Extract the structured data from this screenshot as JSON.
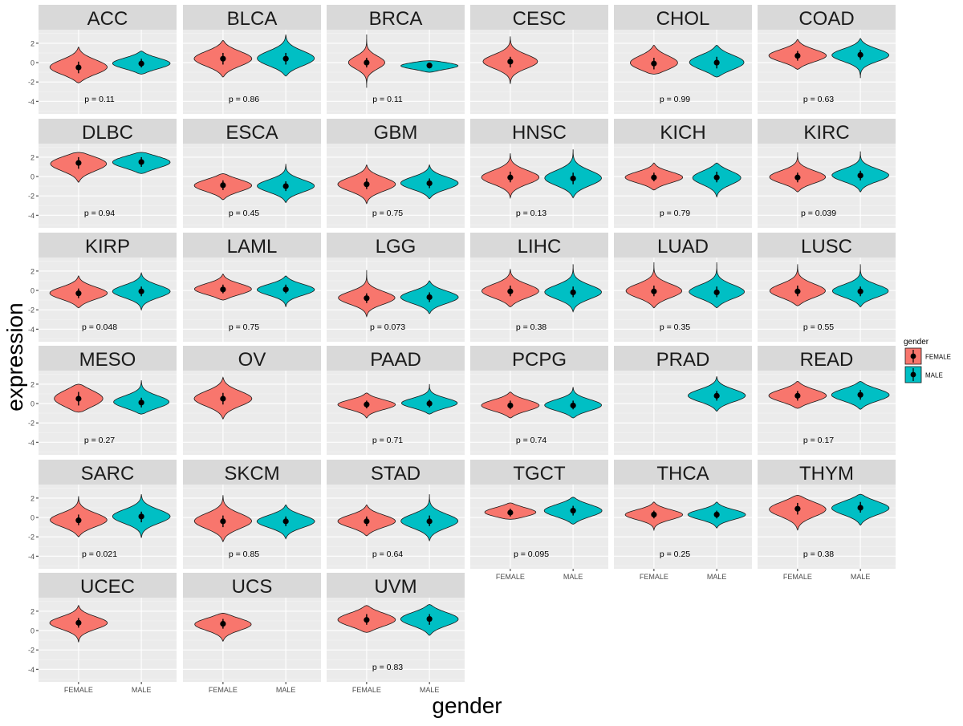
{
  "chart_data": {
    "type": "violin",
    "xlabel": "gender",
    "ylabel": "expression",
    "categories": [
      "FEMALE",
      "MALE"
    ],
    "y_ticks": [
      2,
      0,
      -2,
      -4
    ],
    "ylim": [
      -5.3,
      3.4
    ],
    "legend": {
      "title": "gender",
      "position": "right",
      "entries": [
        {
          "label": "FEMALE",
          "color": "#F8766D"
        },
        {
          "label": "MALE",
          "color": "#00BFC4"
        }
      ]
    },
    "panels": [
      {
        "name": "ACC",
        "p": "p = 0.11",
        "groups": [
          {
            "median": -0.5,
            "q1": -1.1,
            "q3": 0.1,
            "min": -2.1,
            "max": 1.6,
            "width": 0.95
          },
          {
            "median": -0.1,
            "q1": -0.5,
            "q3": 0.4,
            "min": -1.2,
            "max": 1.2,
            "width": 0.95
          }
        ]
      },
      {
        "name": "BLCA",
        "p": "p = 0.86",
        "groups": [
          {
            "median": 0.4,
            "q1": -0.2,
            "q3": 1.0,
            "min": -1.5,
            "max": 2.3,
            "width": 0.95
          },
          {
            "median": 0.4,
            "q1": -0.2,
            "q3": 1.0,
            "min": -1.4,
            "max": 2.9,
            "width": 0.95
          }
        ]
      },
      {
        "name": "BRCA",
        "p": "p = 0.11",
        "groups": [
          {
            "median": 0.0,
            "q1": -0.5,
            "q3": 0.5,
            "min": -2.6,
            "max": 2.9,
            "width": 0.6
          },
          {
            "median": -0.3,
            "q1": -0.6,
            "q3": 0.0,
            "min": -1.0,
            "max": 0.2,
            "width": 0.95
          }
        ]
      },
      {
        "name": "CESC",
        "p": "",
        "groups": [
          {
            "median": 0.1,
            "q1": -0.5,
            "q3": 0.6,
            "min": -2.2,
            "max": 2.7,
            "width": 0.9
          },
          null
        ]
      },
      {
        "name": "CHOL",
        "p": "p = 0.99",
        "groups": [
          {
            "median": -0.1,
            "q1": -0.7,
            "q3": 0.5,
            "min": -1.2,
            "max": 1.8,
            "width": 0.8
          },
          {
            "median": 0.0,
            "q1": -0.6,
            "q3": 0.6,
            "min": -1.5,
            "max": 1.8,
            "width": 0.9
          }
        ]
      },
      {
        "name": "COAD",
        "p": "p = 0.63",
        "groups": [
          {
            "median": 0.7,
            "q1": 0.2,
            "q3": 1.2,
            "min": -0.7,
            "max": 2.4,
            "width": 0.95
          },
          {
            "median": 0.8,
            "q1": 0.3,
            "q3": 1.3,
            "min": -1.6,
            "max": 2.5,
            "width": 0.95
          }
        ]
      },
      {
        "name": "DLBC",
        "p": "p = 0.94",
        "groups": [
          {
            "median": 1.4,
            "q1": 0.8,
            "q3": 2.0,
            "min": -0.6,
            "max": 2.5,
            "width": 0.95
          },
          {
            "median": 1.5,
            "q1": 1.0,
            "q3": 2.0,
            "min": 0.3,
            "max": 2.5,
            "width": 0.95
          }
        ]
      },
      {
        "name": "ESCA",
        "p": "p = 0.45",
        "groups": [
          {
            "median": -0.9,
            "q1": -1.4,
            "q3": -0.4,
            "min": -2.4,
            "max": 0.3,
            "width": 0.95
          },
          {
            "median": -1.0,
            "q1": -1.5,
            "q3": -0.5,
            "min": -2.7,
            "max": 1.3,
            "width": 0.95
          }
        ]
      },
      {
        "name": "GBM",
        "p": "p = 0.75",
        "groups": [
          {
            "median": -0.8,
            "q1": -1.3,
            "q3": -0.2,
            "min": -2.8,
            "max": 1.2,
            "width": 0.95
          },
          {
            "median": -0.7,
            "q1": -1.2,
            "q3": -0.2,
            "min": -2.3,
            "max": 1.2,
            "width": 0.95
          }
        ]
      },
      {
        "name": "HNSC",
        "p": "p = 0.13",
        "groups": [
          {
            "median": -0.1,
            "q1": -0.6,
            "q3": 0.5,
            "min": -2.2,
            "max": 2.4,
            "width": 0.95
          },
          {
            "median": -0.2,
            "q1": -0.8,
            "q3": 0.4,
            "min": -2.2,
            "max": 2.8,
            "width": 0.95
          }
        ]
      },
      {
        "name": "KICH",
        "p": "p = 0.79",
        "groups": [
          {
            "median": -0.1,
            "q1": -0.5,
            "q3": 0.4,
            "min": -1.4,
            "max": 1.4,
            "width": 0.95
          },
          {
            "median": -0.1,
            "q1": -0.6,
            "q3": 0.5,
            "min": -2.1,
            "max": 1.4,
            "width": 0.8
          }
        ]
      },
      {
        "name": "KIRC",
        "p": "p = 0.039",
        "groups": [
          {
            "median": -0.1,
            "q1": -0.6,
            "q3": 0.4,
            "min": -1.6,
            "max": 2.5,
            "width": 0.95
          },
          {
            "median": 0.1,
            "q1": -0.4,
            "q3": 0.6,
            "min": -1.6,
            "max": 2.6,
            "width": 0.95
          }
        ]
      },
      {
        "name": "KIRP",
        "p": "p = 0.048",
        "groups": [
          {
            "median": -0.3,
            "q1": -0.8,
            "q3": 0.2,
            "min": -1.8,
            "max": 1.5,
            "width": 0.95
          },
          {
            "median": -0.1,
            "q1": -0.6,
            "q3": 0.4,
            "min": -2.0,
            "max": 1.8,
            "width": 0.95
          }
        ]
      },
      {
        "name": "LAML",
        "p": "p = 0.75",
        "groups": [
          {
            "median": 0.1,
            "q1": -0.3,
            "q3": 0.6,
            "min": -1.0,
            "max": 1.7,
            "width": 0.95
          },
          {
            "median": 0.1,
            "q1": -0.3,
            "q3": 0.6,
            "min": -1.7,
            "max": 1.5,
            "width": 0.95
          }
        ]
      },
      {
        "name": "LGG",
        "p": "p = 0.073",
        "groups": [
          {
            "median": -0.8,
            "q1": -1.3,
            "q3": -0.3,
            "min": -2.7,
            "max": 2.1,
            "width": 0.95
          },
          {
            "median": -0.7,
            "q1": -1.2,
            "q3": -0.2,
            "min": -2.4,
            "max": 1.0,
            "width": 0.95
          }
        ]
      },
      {
        "name": "LIHC",
        "p": "p = 0.38",
        "groups": [
          {
            "median": -0.1,
            "q1": -0.6,
            "q3": 0.5,
            "min": -1.7,
            "max": 2.2,
            "width": 0.95
          },
          {
            "median": -0.2,
            "q1": -0.7,
            "q3": 0.4,
            "min": -2.2,
            "max": 2.7,
            "width": 0.95
          }
        ]
      },
      {
        "name": "LUAD",
        "p": "p = 0.35",
        "groups": [
          {
            "median": -0.1,
            "q1": -0.6,
            "q3": 0.5,
            "min": -1.8,
            "max": 2.9,
            "width": 0.95
          },
          {
            "median": -0.2,
            "q1": -0.7,
            "q3": 0.4,
            "min": -1.8,
            "max": 2.9,
            "width": 0.95
          }
        ]
      },
      {
        "name": "LUSC",
        "p": "p = 0.55",
        "groups": [
          {
            "median": -0.1,
            "q1": -0.6,
            "q3": 0.5,
            "min": -1.6,
            "max": 2.7,
            "width": 0.95
          },
          {
            "median": -0.1,
            "q1": -0.6,
            "q3": 0.4,
            "min": -1.7,
            "max": 2.7,
            "width": 0.95
          }
        ]
      },
      {
        "name": "MESO",
        "p": "p = 0.27",
        "groups": [
          {
            "median": 0.5,
            "q1": -0.2,
            "q3": 1.2,
            "min": -0.9,
            "max": 2.0,
            "width": 0.8
          },
          {
            "median": 0.1,
            "q1": -0.4,
            "q3": 0.6,
            "min": -1.1,
            "max": 2.4,
            "width": 0.95
          }
        ]
      },
      {
        "name": "OV",
        "p": "",
        "groups": [
          {
            "median": 0.5,
            "q1": -0.1,
            "q3": 1.1,
            "min": -1.6,
            "max": 2.7,
            "width": 0.95
          },
          null
        ]
      },
      {
        "name": "PAAD",
        "p": "p = 0.71",
        "groups": [
          {
            "median": -0.1,
            "q1": -0.5,
            "q3": 0.3,
            "min": -1.5,
            "max": 1.1,
            "width": 0.95
          },
          {
            "median": 0.0,
            "q1": -0.4,
            "q3": 0.4,
            "min": -1.1,
            "max": 2.0,
            "width": 0.95
          }
        ]
      },
      {
        "name": "PCPG",
        "p": "p = 0.74",
        "groups": [
          {
            "median": -0.2,
            "q1": -0.6,
            "q3": 0.3,
            "min": -1.5,
            "max": 1.2,
            "width": 0.95
          },
          {
            "median": -0.2,
            "q1": -0.6,
            "q3": 0.3,
            "min": -1.5,
            "max": 1.7,
            "width": 0.95
          }
        ]
      },
      {
        "name": "PRAD",
        "p": "",
        "groups": [
          null,
          {
            "median": 0.8,
            "q1": 0.3,
            "q3": 1.3,
            "min": -0.8,
            "max": 2.8,
            "width": 0.95
          }
        ]
      },
      {
        "name": "READ",
        "p": "p = 0.17",
        "groups": [
          {
            "median": 0.8,
            "q1": 0.3,
            "q3": 1.3,
            "min": -0.5,
            "max": 2.3,
            "width": 0.95
          },
          {
            "median": 0.9,
            "q1": 0.4,
            "q3": 1.4,
            "min": -0.6,
            "max": 2.3,
            "width": 0.95
          }
        ]
      },
      {
        "name": "SARC",
        "p": "p = 0.021",
        "groups": [
          {
            "median": -0.3,
            "q1": -0.8,
            "q3": 0.3,
            "min": -2.0,
            "max": 2.2,
            "width": 0.95
          },
          {
            "median": 0.1,
            "q1": -0.5,
            "q3": 0.6,
            "min": -2.1,
            "max": 2.4,
            "width": 0.95
          }
        ]
      },
      {
        "name": "SKCM",
        "p": "p = 0.85",
        "groups": [
          {
            "median": -0.4,
            "q1": -1.0,
            "q3": 0.2,
            "min": -2.5,
            "max": 2.3,
            "width": 0.95
          },
          {
            "median": -0.4,
            "q1": -0.9,
            "q3": 0.1,
            "min": -2.2,
            "max": 1.3,
            "width": 0.95
          }
        ]
      },
      {
        "name": "STAD",
        "p": "p = 0.64",
        "groups": [
          {
            "median": -0.4,
            "q1": -0.9,
            "q3": 0.1,
            "min": -1.9,
            "max": 1.3,
            "width": 0.95
          },
          {
            "median": -0.4,
            "q1": -0.9,
            "q3": 0.2,
            "min": -2.4,
            "max": 2.4,
            "width": 0.95
          }
        ]
      },
      {
        "name": "TGCT",
        "p": "p = 0.095",
        "groups": [
          {
            "median": 0.5,
            "q1": 0.1,
            "q3": 0.9,
            "min": -0.2,
            "max": 1.5,
            "width": 0.85
          },
          {
            "median": 0.7,
            "q1": 0.2,
            "q3": 1.2,
            "min": -0.7,
            "max": 2.1,
            "width": 0.95
          }
        ]
      },
      {
        "name": "THCA",
        "p": "p = 0.25",
        "groups": [
          {
            "median": 0.3,
            "q1": -0.1,
            "q3": 0.7,
            "min": -1.3,
            "max": 1.6,
            "width": 0.95
          },
          {
            "median": 0.3,
            "q1": -0.1,
            "q3": 0.7,
            "min": -1.1,
            "max": 1.6,
            "width": 0.95
          }
        ]
      },
      {
        "name": "THYM",
        "p": "p = 0.38",
        "groups": [
          {
            "median": 0.9,
            "q1": 0.3,
            "q3": 1.5,
            "min": -1.3,
            "max": 2.3,
            "width": 0.95
          },
          {
            "median": 1.0,
            "q1": 0.5,
            "q3": 1.6,
            "min": -0.8,
            "max": 2.4,
            "width": 0.95
          }
        ]
      },
      {
        "name": "UCEC",
        "p": "",
        "groups": [
          {
            "median": 0.8,
            "q1": 0.3,
            "q3": 1.3,
            "min": -1.2,
            "max": 2.6,
            "width": 0.95
          },
          null
        ]
      },
      {
        "name": "UCS",
        "p": "",
        "groups": [
          {
            "median": 0.7,
            "q1": 0.2,
            "q3": 1.2,
            "min": -1.1,
            "max": 1.8,
            "width": 0.95
          },
          null
        ]
      },
      {
        "name": "UVM",
        "p": "p = 0.83",
        "groups": [
          {
            "median": 1.1,
            "q1": 0.6,
            "q3": 1.7,
            "min": -0.2,
            "max": 2.6,
            "width": 0.95
          },
          {
            "median": 1.2,
            "q1": 0.6,
            "q3": 1.7,
            "min": -0.5,
            "max": 2.7,
            "width": 0.95
          }
        ]
      }
    ]
  }
}
